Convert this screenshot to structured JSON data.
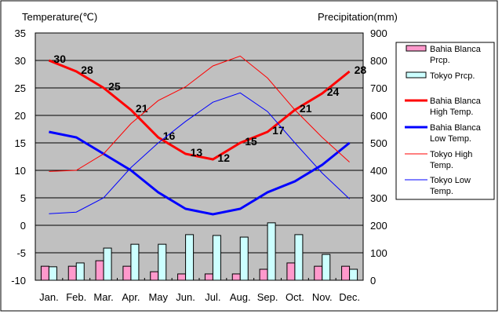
{
  "chart_data": {
    "type": "bar+line",
    "categories": [
      "Jan.",
      "Feb.",
      "Mar.",
      "Apr.",
      "May",
      "Jun.",
      "Jul.",
      "Aug.",
      "Sep.",
      "Oct.",
      "Nov.",
      "Dec."
    ],
    "ylabel_left": "Temperature(℃)",
    "ylabel_right": "Precipitation(mm)",
    "ylim_left": [
      -10,
      35
    ],
    "ylim_right": [
      0,
      900
    ],
    "left_ticks": [
      "35",
      "30",
      "25",
      "20",
      "15",
      "10",
      "5",
      "0",
      "-5",
      "-10"
    ],
    "right_ticks": [
      "900",
      "800",
      "700",
      "600",
      "500",
      "400",
      "300",
      "200",
      "100",
      "0"
    ],
    "grid": true,
    "legend_position": "right",
    "bars": [
      {
        "name": "Bahia Blanca Prcp.",
        "color": "#ff99cc",
        "values": [
          51,
          51,
          71,
          51,
          31,
          23,
          23,
          23,
          40,
          63,
          51,
          51
        ]
      },
      {
        "name": "Tokyo Prcp.",
        "color": "#ccffff",
        "values": [
          49,
          63,
          117,
          131,
          131,
          166,
          163,
          157,
          209,
          166,
          94,
          40
        ]
      }
    ],
    "lines": [
      {
        "name": "Bahia Blanca High Temp.",
        "color": "#ff0000",
        "width": 3,
        "values": [
          30,
          28,
          25,
          21,
          16,
          13,
          12,
          15,
          17,
          21,
          24,
          28
        ],
        "labels": [
          "30",
          "28",
          "25",
          "21",
          "16",
          "13",
          "12",
          "15",
          "17",
          "21",
          "24",
          "28"
        ]
      },
      {
        "name": "Bahia Blanca Low Temp.",
        "color": "#0000ff",
        "width": 3,
        "values": [
          17,
          16,
          13,
          10,
          6,
          3,
          2,
          3,
          6,
          8,
          11,
          15
        ]
      },
      {
        "name": "Tokyo High Temp.",
        "color": "#ff0000",
        "width": 1,
        "values": [
          9.8,
          10,
          13,
          18.5,
          22.7,
          25.2,
          29,
          30.8,
          26.8,
          21,
          16,
          11.5
        ]
      },
      {
        "name": "Tokyo Low Temp.",
        "color": "#0000ff",
        "width": 1,
        "values": [
          2.1,
          2.4,
          5,
          10.5,
          15,
          18.9,
          22.4,
          24.1,
          20.7,
          15,
          9.5,
          4.8
        ]
      }
    ]
  }
}
